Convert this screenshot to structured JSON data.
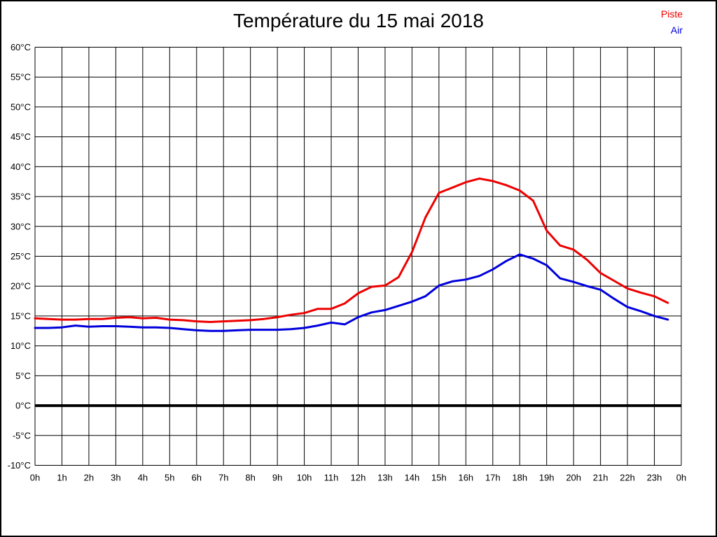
{
  "chart_data": {
    "type": "line",
    "title": "Température du 15 mai 2018",
    "xlabel": "",
    "ylabel": "",
    "xlim": [
      0,
      24
    ],
    "ylim": [
      -10,
      60
    ],
    "grid": true,
    "zero_line_emphasized": true,
    "legend_position": "top-right",
    "y_tick_values": [
      60,
      55,
      50,
      45,
      40,
      35,
      30,
      25,
      20,
      15,
      10,
      5,
      0,
      -5,
      -10
    ],
    "y_tick_labels": [
      "60°C",
      "55°C",
      "50°C",
      "45°C",
      "40°C",
      "35°C",
      "30°C",
      "25°C",
      "20°C",
      "15°C",
      "10°C",
      "5°C",
      "0°C",
      "-5°C",
      "-10°C"
    ],
    "x_tick_values": [
      0,
      1,
      2,
      3,
      4,
      5,
      6,
      7,
      8,
      9,
      10,
      11,
      12,
      13,
      14,
      15,
      16,
      17,
      18,
      19,
      20,
      21,
      22,
      23,
      24
    ],
    "x_tick_labels": [
      "0h",
      "1h",
      "2h",
      "3h",
      "4h",
      "5h",
      "6h",
      "7h",
      "8h",
      "9h",
      "10h",
      "11h",
      "12h",
      "13h",
      "14h",
      "15h",
      "16h",
      "17h",
      "18h",
      "19h",
      "20h",
      "21h",
      "22h",
      "23h",
      "0h"
    ],
    "x_hours": [
      0,
      0.5,
      1,
      1.5,
      2,
      2.5,
      3,
      3.5,
      4,
      4.5,
      5,
      5.5,
      6,
      6.5,
      7,
      7.5,
      8,
      8.5,
      9,
      9.5,
      10,
      10.5,
      11,
      11.5,
      12,
      12.5,
      13,
      13.5,
      14,
      14.5,
      15,
      15.5,
      16,
      16.5,
      17,
      17.5,
      18,
      18.5,
      19,
      19.5,
      20,
      20.5,
      21,
      21.5,
      22,
      22.5,
      23,
      23.5
    ],
    "series": [
      {
        "name": "Piste",
        "color": "#ee0000",
        "values": [
          14.6,
          14.5,
          14.4,
          14.4,
          14.5,
          14.5,
          14.7,
          14.8,
          14.6,
          14.7,
          14.4,
          14.3,
          14.1,
          14.0,
          14.1,
          14.2,
          14.3,
          14.5,
          14.8,
          15.2,
          15.5,
          16.2,
          16.2,
          17.1,
          18.8,
          19.9,
          20.1,
          21.5,
          25.7,
          31.5,
          35.6,
          36.5,
          37.4,
          38.0,
          37.6,
          36.9,
          36.0,
          34.3,
          29.3,
          26.8,
          26.1,
          24.4,
          22.2,
          20.9,
          19.6,
          18.9,
          18.3,
          17.2
        ]
      },
      {
        "name": "Air",
        "color": "#0000dd",
        "values": [
          13.0,
          13.0,
          13.1,
          13.4,
          13.2,
          13.3,
          13.3,
          13.2,
          13.1,
          13.1,
          13.0,
          12.8,
          12.6,
          12.5,
          12.5,
          12.6,
          12.7,
          12.7,
          12.7,
          12.8,
          13.0,
          13.4,
          13.9,
          13.6,
          14.8,
          15.6,
          16.0,
          16.7,
          17.4,
          18.3,
          20.1,
          20.8,
          21.1,
          21.7,
          22.8,
          24.2,
          25.3,
          24.6,
          23.5,
          21.3,
          20.7,
          20.0,
          19.4,
          17.9,
          16.5,
          15.8,
          15.0,
          14.4
        ]
      }
    ]
  }
}
